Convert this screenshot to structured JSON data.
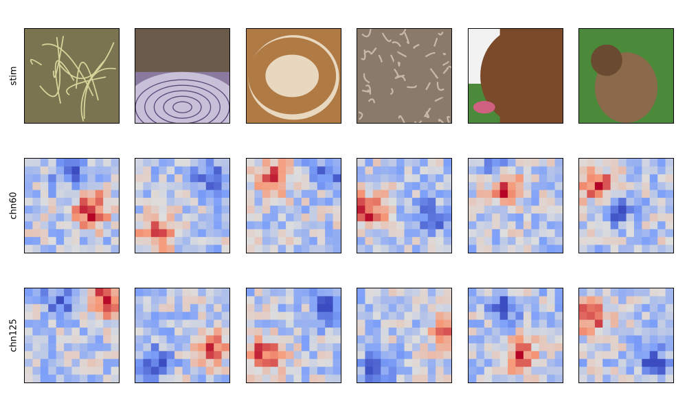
{
  "rows": [
    {
      "label": "stim",
      "kind": "image"
    },
    {
      "label": "chn60",
      "kind": "heatmap"
    },
    {
      "label": "chn125",
      "kind": "heatmap"
    }
  ],
  "stimuli": [
    {
      "subject": "worms-on-dish",
      "colors": [
        "#7a7450",
        "#d8d39a"
      ]
    },
    {
      "subject": "labyrinth-floor",
      "colors": [
        "#8a7aa0",
        "#5a4a7a"
      ]
    },
    {
      "subject": "bagel",
      "colors": [
        "#b07a45",
        "#3a2a20"
      ]
    },
    {
      "subject": "brain-coral",
      "colors": [
        "#8a7a6a",
        "#5a4a3a"
      ]
    },
    {
      "subject": "dog-head",
      "colors": [
        "#7a4a2a",
        "#4a8a3a"
      ]
    },
    {
      "subject": "dog-sitting",
      "colors": [
        "#4a8a3a",
        "#8a6a4a"
      ]
    }
  ],
  "colormap": "coolwarm",
  "heatmap_grid": 12
}
